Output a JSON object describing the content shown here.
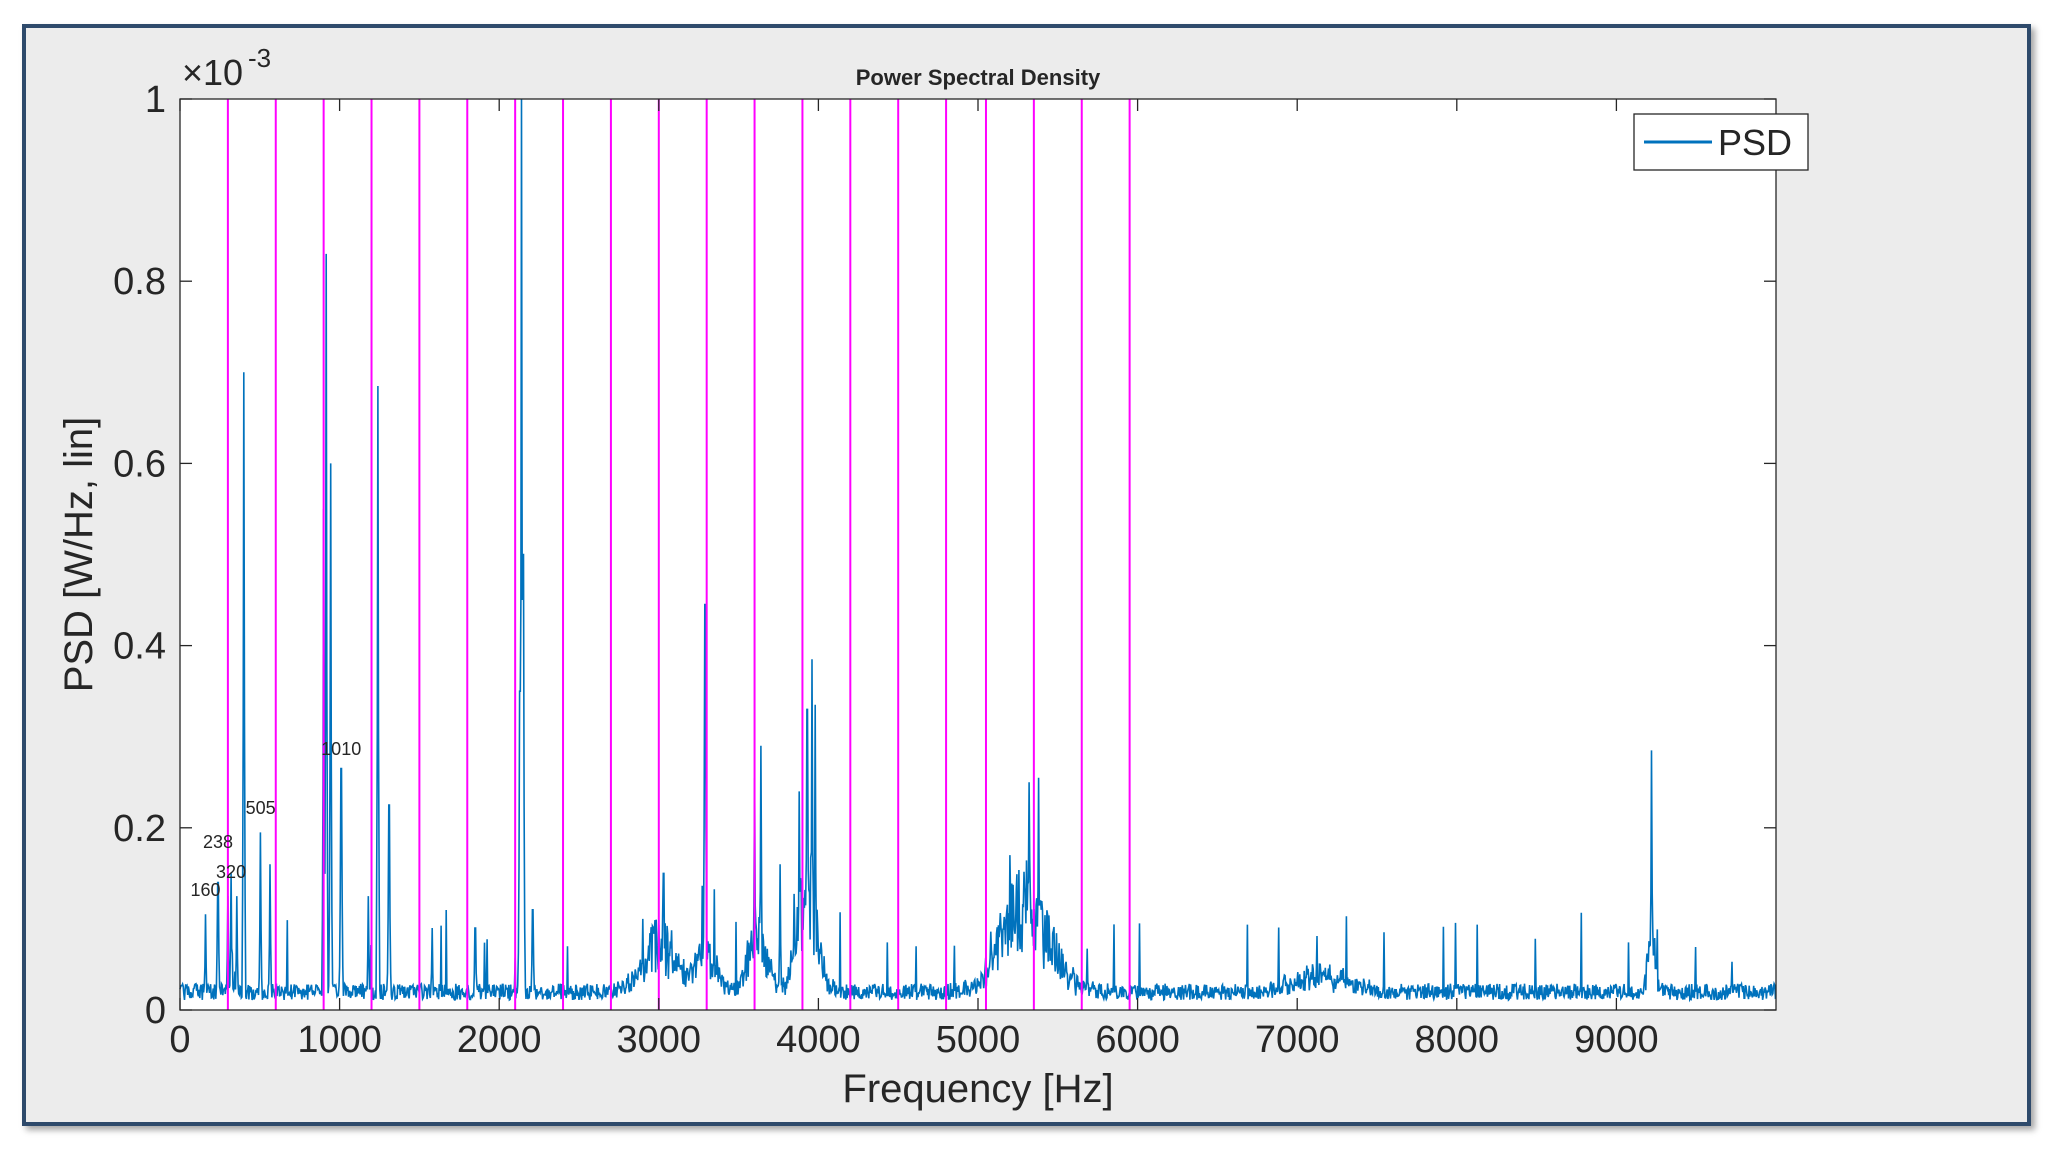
{
  "chart_data": {
    "type": "line",
    "title": "Power Spectral Density",
    "xlabel": "Frequency [Hz]",
    "ylabel": "PSD [W/Hz, lin]",
    "y_exponent_label": "×10",
    "y_exponent": "-3",
    "xlim": [
      0,
      10000
    ],
    "ylim": [
      0,
      1
    ],
    "x_ticks": [
      0,
      1000,
      2000,
      3000,
      4000,
      5000,
      6000,
      7000,
      8000,
      9000
    ],
    "x_tick_labels": [
      "0",
      "1000",
      "2000",
      "3000",
      "4000",
      "5000",
      "6000",
      "7000",
      "8000",
      "9000"
    ],
    "y_ticks": [
      0,
      0.2,
      0.4,
      0.6,
      0.8,
      1
    ],
    "y_tick_labels": [
      "0",
      "0.2",
      "0.4",
      "0.6",
      "0.8",
      "1"
    ],
    "legend": {
      "position": "top-right",
      "entries": [
        "PSD"
      ]
    },
    "grid": false,
    "series": [
      {
        "name": "PSD",
        "color": "#0072bd",
        "peaks": [
          {
            "x": 160,
            "y": 0.105
          },
          {
            "x": 238,
            "y": 0.14
          },
          {
            "x": 300,
            "y": 0.125
          },
          {
            "x": 320,
            "y": 0.15
          },
          {
            "x": 355,
            "y": 0.125
          },
          {
            "x": 400,
            "y": 0.7
          },
          {
            "x": 505,
            "y": 0.195
          },
          {
            "x": 565,
            "y": 0.16
          },
          {
            "x": 900,
            "y": 0.55
          },
          {
            "x": 915,
            "y": 0.83
          },
          {
            "x": 945,
            "y": 0.6
          },
          {
            "x": 1010,
            "y": 0.265
          },
          {
            "x": 1180,
            "y": 0.125
          },
          {
            "x": 1240,
            "y": 0.685
          },
          {
            "x": 1310,
            "y": 0.225
          },
          {
            "x": 1580,
            "y": 0.09
          },
          {
            "x": 1850,
            "y": 0.09
          },
          {
            "x": 2130,
            "y": 0.35
          },
          {
            "x": 2140,
            "y": 1.0
          },
          {
            "x": 2150,
            "y": 0.5
          },
          {
            "x": 2210,
            "y": 0.11
          },
          {
            "x": 3030,
            "y": 0.15
          },
          {
            "x": 3290,
            "y": 0.445
          },
          {
            "x": 3600,
            "y": 0.255
          },
          {
            "x": 3640,
            "y": 0.29
          },
          {
            "x": 3760,
            "y": 0.16
          },
          {
            "x": 3880,
            "y": 0.24
          },
          {
            "x": 3930,
            "y": 0.33
          },
          {
            "x": 3960,
            "y": 0.385
          },
          {
            "x": 3980,
            "y": 0.335
          },
          {
            "x": 5200,
            "y": 0.17
          },
          {
            "x": 5320,
            "y": 0.25
          },
          {
            "x": 5380,
            "y": 0.255
          },
          {
            "x": 7100,
            "y": 0.045
          },
          {
            "x": 9220,
            "y": 0.285
          }
        ],
        "humps": [
          {
            "x": 3000,
            "width": 140,
            "height": 0.07
          },
          {
            "x": 3290,
            "width": 90,
            "height": 0.05
          },
          {
            "x": 3620,
            "width": 80,
            "height": 0.08
          },
          {
            "x": 3930,
            "width": 90,
            "height": 0.12
          },
          {
            "x": 5300,
            "width": 210,
            "height": 0.12
          },
          {
            "x": 7150,
            "width": 230,
            "height": 0.022
          },
          {
            "x": 9220,
            "width": 35,
            "height": 0.06
          }
        ],
        "noise_floor": 0.02
      }
    ],
    "reference_lines": {
      "color": "#ff00ff",
      "x": [
        300,
        600,
        900,
        1200,
        1500,
        1800,
        2100,
        2400,
        2700,
        3000,
        3300,
        3600,
        3900,
        4200,
        4500,
        4800,
        5050,
        5350,
        5650,
        5950
      ]
    },
    "annotations": [
      {
        "text": "160",
        "x": 160,
        "y": 0.125
      },
      {
        "text": "238",
        "x": 238,
        "y": 0.178
      },
      {
        "text": "320",
        "x": 320,
        "y": 0.145
      },
      {
        "text": "505",
        "x": 505,
        "y": 0.215
      },
      {
        "text": "1010",
        "x": 1010,
        "y": 0.28
      }
    ]
  }
}
